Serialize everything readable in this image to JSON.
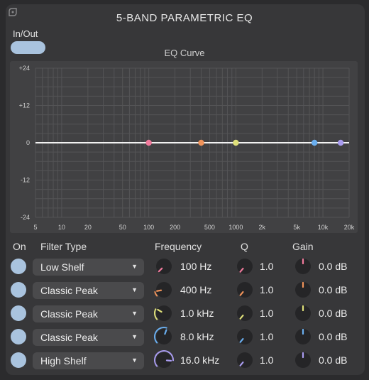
{
  "title": "5-BAND PARAMETRIC EQ",
  "inout_label": "In/Out",
  "curve_label": "EQ Curve",
  "graph": {
    "y_ticks": [
      "+24",
      "+12",
      "0",
      "-12",
      "-24"
    ],
    "x_ticks": [
      "5",
      "10",
      "20",
      "50",
      "100",
      "200",
      "500",
      "1000",
      "2k",
      "5k",
      "10k",
      "20k"
    ],
    "x_tick_values": [
      5,
      10,
      20,
      50,
      100,
      200,
      500,
      1000,
      2000,
      5000,
      10000,
      20000
    ],
    "x_range": [
      5,
      20000
    ],
    "y_range": [
      -24,
      24
    ]
  },
  "headers": {
    "on": "On",
    "filter_type": "Filter Type",
    "frequency": "Frequency",
    "q": "Q",
    "gain": "Gain"
  },
  "bands": [
    {
      "type": "Low Shelf",
      "freq_label": "100 Hz",
      "freq_hz": 100,
      "q": "1.0",
      "gain": "0.0 dB",
      "color": "#f07a9c"
    },
    {
      "type": "Classic Peak",
      "freq_label": "400 Hz",
      "freq_hz": 400,
      "q": "1.0",
      "gain": "0.0 dB",
      "color": "#f0935a"
    },
    {
      "type": "Classic Peak",
      "freq_label": "1.0 kHz",
      "freq_hz": 1000,
      "q": "1.0",
      "gain": "0.0 dB",
      "color": "#dfe07a"
    },
    {
      "type": "Classic Peak",
      "freq_label": "8.0 kHz",
      "freq_hz": 8000,
      "q": "1.0",
      "gain": "0.0 dB",
      "color": "#6aaff0"
    },
    {
      "type": "High Shelf",
      "freq_label": "16.0 kHz",
      "freq_hz": 16000,
      "q": "1.0",
      "gain": "0.0 dB",
      "color": "#a99cf0"
    }
  ]
}
